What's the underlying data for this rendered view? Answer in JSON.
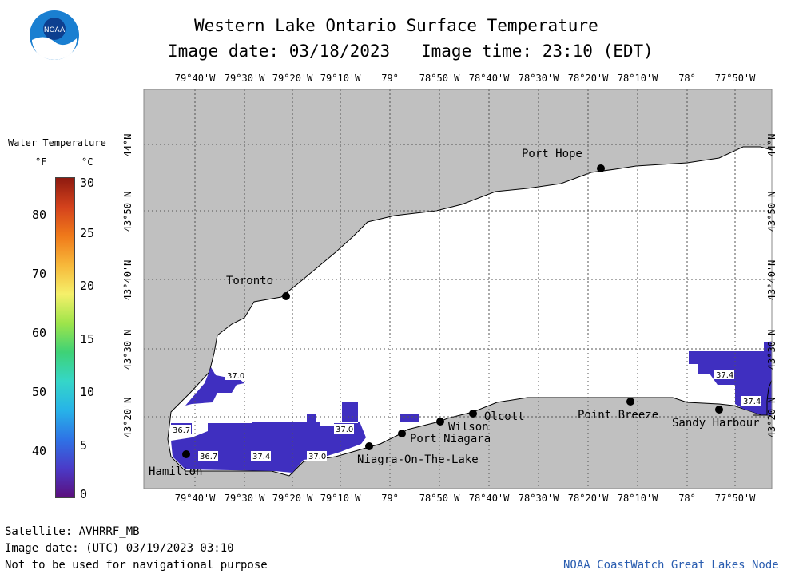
{
  "header": {
    "title": "Western Lake Ontario Surface Temperature",
    "date_label": "Image date: 03/18/2023",
    "time_label": "Image time: 23:10 (EDT)",
    "logo_text": "NOAA"
  },
  "legend": {
    "title": "Water Temperature",
    "unit_f": "°F",
    "unit_c": "°C",
    "f_ticks": [
      "80",
      "70",
      "60",
      "50",
      "40"
    ],
    "c_ticks": [
      "30",
      "25",
      "20",
      "15",
      "10",
      "5",
      "0"
    ],
    "colors": [
      "#5b0f7d",
      "#4a3bc8",
      "#2e73e6",
      "#27b3e8",
      "#35d6c8",
      "#3ed276",
      "#9ee44a",
      "#f5f06a",
      "#f7b83a",
      "#f07a1a",
      "#d4421c",
      "#8e1a10"
    ]
  },
  "map": {
    "land_color": "#c0c0c0",
    "lake_color": "#ffffff",
    "cold_water_color": "#3f2fc0",
    "lon_labels": [
      "79°40'W",
      "79°30'W",
      "79°20'W",
      "79°10'W",
      "79°",
      "78°50'W",
      "78°40'W",
      "78°30'W",
      "78°20'W",
      "78°10'W",
      "78°",
      "77°50'W"
    ],
    "lat_labels": [
      "44°N",
      "43°50'N",
      "43°40'N",
      "43°30'N",
      "43°20'N"
    ],
    "cities": [
      {
        "key": "port-hope",
        "name": "Port Hope"
      },
      {
        "key": "toronto",
        "name": "Toronto"
      },
      {
        "key": "hamilton",
        "name": "Hamilton"
      },
      {
        "key": "niagra-on-the-lake",
        "name": "Niagra-On-The-Lake"
      },
      {
        "key": "port-niagara",
        "name": "Port Niagara"
      },
      {
        "key": "wilson",
        "name": "Wilson"
      },
      {
        "key": "olcott",
        "name": "Olcott"
      },
      {
        "key": "point-breeze",
        "name": "Point Breeze"
      },
      {
        "key": "sandy-harbour",
        "name": "Sandy Harbour"
      }
    ],
    "temps": [
      "37.0",
      "36.7",
      "36.7",
      "37.4",
      "37.0",
      "37.0",
      "37.4",
      "37.4"
    ]
  },
  "footer": {
    "satellite": "Satellite: AVHRRF_MB",
    "utc_date": "Image date: (UTC) 03/19/2023  03:10",
    "disclaimer": "Not to be used for navigational purpose",
    "credit": "NOAA CoastWatch Great Lakes Node"
  }
}
